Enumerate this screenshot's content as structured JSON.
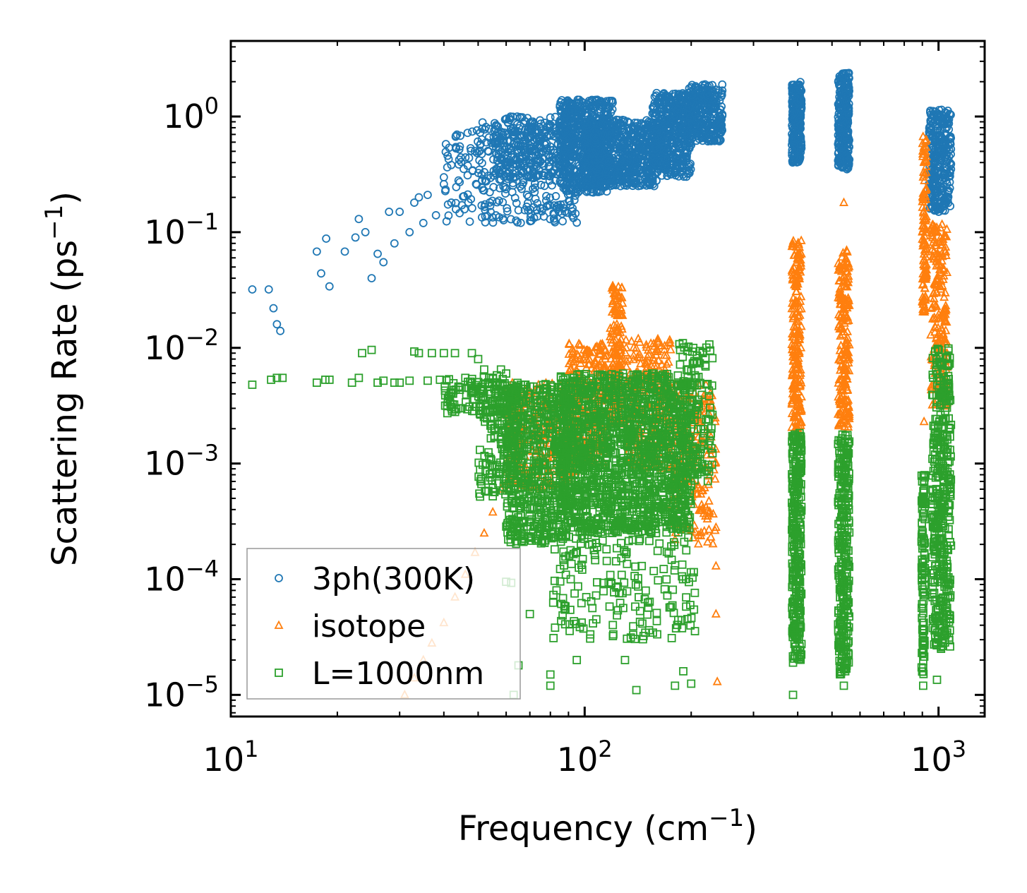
{
  "chart_data": {
    "type": "scatter",
    "xscale": "log",
    "yscale": "log",
    "xlim": [
      10,
      1350
    ],
    "ylim": [
      6.5e-06,
      4.5
    ],
    "xlabel": {
      "text": "Frequency (cm",
      "sup": "−1",
      "close": ")"
    },
    "ylabel": {
      "text": "Scattering Rate (ps",
      "sup": "−1",
      "close": ")"
    },
    "x_ticks": [
      {
        "value": 10,
        "base": "10",
        "exp": "1"
      },
      {
        "value": 100,
        "base": "10",
        "exp": "2"
      },
      {
        "value": 1000,
        "base": "10",
        "exp": "3"
      }
    ],
    "y_ticks": [
      {
        "value": 1,
        "base": "10",
        "exp": "0"
      },
      {
        "value": 0.1,
        "base": "10",
        "exp": "−1"
      },
      {
        "value": 0.01,
        "base": "10",
        "exp": "−2"
      },
      {
        "value": 0.001,
        "base": "10",
        "exp": "−3"
      },
      {
        "value": 0.0001,
        "base": "10",
        "exp": "−4"
      },
      {
        "value": 1e-05,
        "base": "10",
        "exp": "−5"
      }
    ],
    "legend_position": "lower-left",
    "series": [
      {
        "name": "3ph(300K)",
        "marker": "circle",
        "color": "#1f77b4",
        "points": [
          [
            11.5,
            0.032
          ],
          [
            12.8,
            0.032
          ],
          [
            13.2,
            0.022
          ],
          [
            13.5,
            0.016
          ],
          [
            13.8,
            0.014
          ],
          [
            17.5,
            0.068
          ],
          [
            18,
            0.044
          ],
          [
            18.6,
            0.088
          ],
          [
            19,
            0.034
          ],
          [
            21,
            0.068
          ],
          [
            22.5,
            0.09
          ],
          [
            23,
            0.13
          ],
          [
            24,
            0.1
          ],
          [
            25,
            0.04
          ],
          [
            26,
            0.065
          ],
          [
            27,
            0.055
          ],
          [
            28,
            0.15
          ],
          [
            29,
            0.08
          ],
          [
            30,
            0.15
          ],
          [
            32,
            0.1
          ],
          [
            33,
            0.18
          ],
          [
            34,
            0.2
          ],
          [
            35,
            0.12
          ],
          [
            36,
            0.21
          ],
          [
            38,
            0.14
          ],
          [
            40,
            0.26
          ],
          [
            42,
            0.18
          ],
          [
            44,
            0.28
          ]
        ],
        "clouds": [
          {
            "x": [
              40,
              95
            ],
            "y": [
              0.12,
              0.9
            ],
            "n": 350
          },
          {
            "x": [
              55,
              90
            ],
            "y": [
              0.3,
              1.0
            ],
            "n": 250
          },
          {
            "x": [
              85,
              120
            ],
            "y": [
              0.22,
              1.4
            ],
            "n": 600
          },
          {
            "x": [
              100,
              160
            ],
            "y": [
              0.25,
              0.95
            ],
            "n": 600
          },
          {
            "x": [
              155,
              200
            ],
            "y": [
              0.3,
              1.6
            ],
            "n": 450
          },
          {
            "x": [
              195,
              245
            ],
            "y": [
              0.6,
              1.9
            ],
            "n": 300
          },
          {
            "x": [
              385,
              410
            ],
            "y": [
              0.4,
              2.0
            ],
            "n": 250
          },
          {
            "x": [
              520,
              560
            ],
            "y": [
              0.35,
              2.4
            ],
            "n": 280
          },
          {
            "x": [
              940,
              1085
            ],
            "y": [
              0.15,
              1.15
            ],
            "n": 300
          }
        ]
      },
      {
        "name": "isotope",
        "marker": "triangle",
        "color": "#ff7f0e",
        "points": [
          [
            31,
            1e-05
          ],
          [
            33,
            1.4e-05
          ],
          [
            35,
            2e-05
          ],
          [
            37,
            2.8e-05
          ],
          [
            40,
            4.2e-05
          ],
          [
            43,
            7e-05
          ],
          [
            46,
            0.00011
          ],
          [
            49,
            0.00017
          ],
          [
            52,
            0.00025
          ],
          [
            55,
            0.00038
          ],
          [
            58,
            0.0006
          ],
          [
            61,
            0.0009
          ],
          [
            64,
            0.0011
          ],
          [
            237,
            1.3e-05
          ],
          [
            235,
            5e-05
          ],
          [
            235,
            0.00013
          ],
          [
            540,
            0.18
          ],
          [
            910,
            0.0023
          ]
        ],
        "clouds": [
          {
            "x": [
              60,
              95
            ],
            "y": [
              0.0006,
              0.005
            ],
            "n": 250
          },
          {
            "x": [
              90,
              115
            ],
            "y": [
              0.001,
              0.011
            ],
            "n": 250
          },
          {
            "x": [
              118,
              128
            ],
            "y": [
              0.002,
              0.035
            ],
            "n": 150
          },
          {
            "x": [
              130,
              175
            ],
            "y": [
              0.0009,
              0.012
            ],
            "n": 250
          },
          {
            "x": [
              175,
              235
            ],
            "y": [
              0.0002,
              0.005
            ],
            "n": 200
          },
          {
            "x": [
              385,
              410
            ],
            "y": [
              0.002,
              0.085
            ],
            "n": 200
          },
          {
            "x": [
              520,
              560
            ],
            "y": [
              0.002,
              0.07
            ],
            "n": 200
          },
          {
            "x": [
              900,
              925
            ],
            "y": [
              0.02,
              0.7
            ],
            "n": 120
          },
          {
            "x": [
              950,
              1060
            ],
            "y": [
              0.003,
              0.12
            ],
            "n": 200
          }
        ]
      },
      {
        "name": "L=1000nm",
        "marker": "square",
        "color": "#2ca02c",
        "points": [
          [
            11.5,
            0.0048
          ],
          [
            13,
            0.0053
          ],
          [
            13.5,
            0.0055
          ],
          [
            14,
            0.0055
          ],
          [
            17.5,
            0.005
          ],
          [
            18.5,
            0.0053
          ],
          [
            19,
            0.0053
          ],
          [
            22,
            0.005
          ],
          [
            23,
            0.0055
          ],
          [
            23.5,
            0.009
          ],
          [
            25,
            0.0096
          ],
          [
            26,
            0.005
          ],
          [
            27,
            0.0052
          ],
          [
            29,
            0.005
          ],
          [
            30,
            0.005
          ],
          [
            32,
            0.0052
          ],
          [
            33,
            0.0093
          ],
          [
            34,
            0.009
          ],
          [
            36,
            0.0052
          ],
          [
            37,
            0.009
          ],
          [
            39,
            0.0053
          ],
          [
            40,
            0.009
          ],
          [
            43,
            0.009
          ],
          [
            46,
            0.0055
          ],
          [
            48,
            0.009
          ],
          [
            50,
            0.008
          ],
          [
            52,
            0.0065
          ],
          [
            55,
            0.0054
          ],
          [
            58,
            0.0065
          ],
          [
            60,
            0.006
          ],
          [
            60,
            9.5e-05
          ],
          [
            62,
            9.3e-05
          ],
          [
            63,
            1e-05
          ],
          [
            65,
            1.8e-05
          ],
          [
            70,
            5e-05
          ],
          [
            80,
            1.2e-05
          ],
          [
            80,
            1.5e-05
          ],
          [
            95,
            2e-05
          ],
          [
            130,
            2e-05
          ],
          [
            140,
            1.1e-05
          ],
          [
            180,
            1.2e-05
          ],
          [
            190,
            1.6e-05
          ],
          [
            200,
            1.25e-05
          ],
          [
            388,
            1e-05
          ],
          [
            388,
            1.9e-05
          ],
          [
            540,
            1.2e-05
          ],
          [
            545,
            1.6e-05
          ],
          [
            905,
            1.2e-05
          ],
          [
            905,
            1.7e-05
          ],
          [
            990,
            1.35e-05
          ],
          [
            1060,
            5e-05
          ]
        ],
        "clouds": [
          {
            "x": [
              40,
              60
            ],
            "y": [
              0.0026,
              0.0058
            ],
            "n": 120
          },
          {
            "x": [
              50,
              65
            ],
            "y": [
              0.0005,
              0.005
            ],
            "n": 150
          },
          {
            "x": [
              60,
              90
            ],
            "y": [
              0.0002,
              0.005
            ],
            "n": 600
          },
          {
            "x": [
              85,
              200
            ],
            "y": [
              0.00025,
              0.006
            ],
            "n": 1500
          },
          {
            "x": [
              80,
              205
            ],
            "y": [
              3e-05,
              0.0003
            ],
            "n": 200
          },
          {
            "x": [
              185,
              230
            ],
            "y": [
              0.0007,
              0.011
            ],
            "n": 150
          },
          {
            "x": [
              385,
              410
            ],
            "y": [
              2e-05,
              0.0019
            ],
            "n": 300
          },
          {
            "x": [
              520,
              560
            ],
            "y": [
              1.5e-05,
              0.0019
            ],
            "n": 300
          },
          {
            "x": [
              895,
              915
            ],
            "y": [
              1.5e-05,
              0.0008
            ],
            "n": 100
          },
          {
            "x": [
              960,
              1085
            ],
            "y": [
              2.5e-05,
              0.01
            ],
            "n": 400
          }
        ]
      }
    ]
  }
}
